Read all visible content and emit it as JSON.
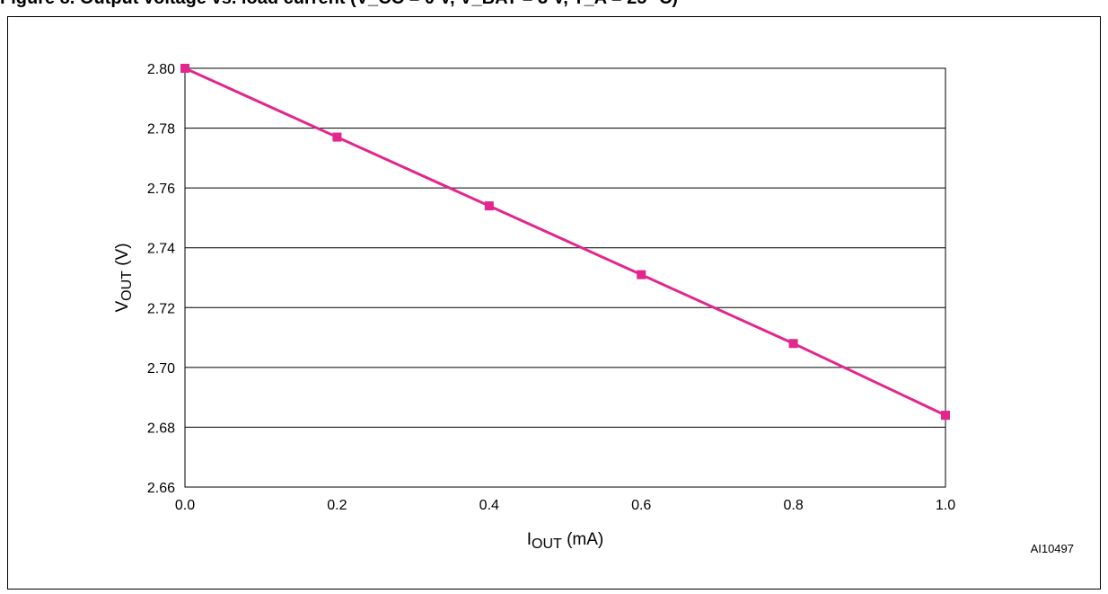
{
  "figure": {
    "title": "Figure 8. Output voltage vs. load current (V_CC = 0 V, V_BAT = 3 V, T_A = 25 °C)",
    "code": "AI10497"
  },
  "chart_data": {
    "type": "line",
    "xlabel": {
      "main": "I",
      "sub": "OUT",
      "unit": " (mA)"
    },
    "ylabel": {
      "main": "V",
      "sub": "OUT",
      "unit": " (V)"
    },
    "xlim": [
      0.0,
      1.0
    ],
    "ylim": [
      2.66,
      2.8
    ],
    "xticks": [
      0.0,
      0.2,
      0.4,
      0.6,
      0.8,
      1.0
    ],
    "yticks": [
      2.66,
      2.68,
      2.7,
      2.72,
      2.74,
      2.76,
      2.78,
      2.8
    ],
    "xtick_labels": [
      "0.0",
      "0.2",
      "0.4",
      "0.6",
      "0.8",
      "1.0"
    ],
    "ytick_labels": [
      "2.66",
      "2.68",
      "2.70",
      "2.72",
      "2.74",
      "2.76",
      "2.78",
      "2.80"
    ],
    "grid": {
      "horizontal": true,
      "vertical": false
    },
    "series": [
      {
        "color": "#e3268e",
        "marker": "square",
        "x": [
          0.0,
          0.2,
          0.4,
          0.6,
          0.8,
          1.0
        ],
        "y": [
          2.8,
          2.777,
          2.754,
          2.731,
          2.708,
          2.684
        ]
      }
    ]
  }
}
